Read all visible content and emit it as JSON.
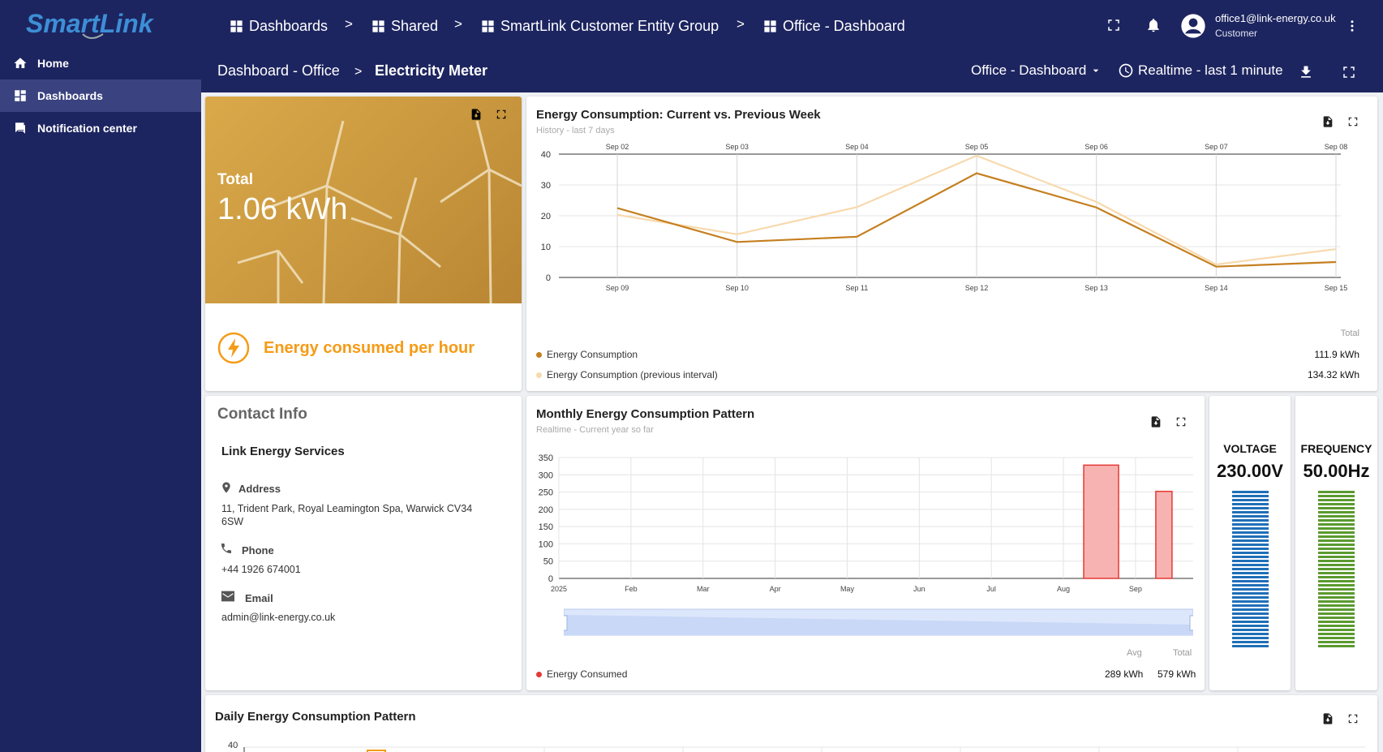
{
  "brand": {
    "logo_text": "SmartLink"
  },
  "sidebar": {
    "items": [
      {
        "label": "Home",
        "icon": "home-icon"
      },
      {
        "label": "Dashboards",
        "icon": "dashboards-icon"
      },
      {
        "label": "Notification center",
        "icon": "notification-icon"
      }
    ]
  },
  "breadcrumb": {
    "items": [
      "Dashboards",
      "Shared",
      "SmartLink Customer Entity Group",
      "Office - Dashboard"
    ],
    "separator": ">"
  },
  "user": {
    "email": "office1@link-energy.co.uk",
    "role": "Customer"
  },
  "subheader": {
    "parent": "Dashboard - Office",
    "current": "Electricity Meter",
    "separator": ">",
    "dashboard_select": "Office - Dashboard",
    "time_window": "Realtime - last 1 minute"
  },
  "total_card": {
    "label": "Total",
    "value": "1.06 kWh",
    "caption": "Energy consumed per hour"
  },
  "contact": {
    "title": "Contact Info",
    "company": "Link Energy Services",
    "address_label": "Address",
    "address": "11, Trident Park, Royal Leamington Spa, Warwick CV34 6SW",
    "phone_label": "Phone",
    "phone": "+44 1926 674001",
    "email_label": "Email",
    "email": "admin@link-energy.co.uk"
  },
  "weekly_chart": {
    "title": "Energy Consumption: Current vs. Previous Week",
    "subtitle": "History - last 7 days",
    "total_header": "Total",
    "legend": [
      {
        "name": "Energy Consumption",
        "total": "111.9 kWh",
        "color": "#c57f1f"
      },
      {
        "name": "Energy Consumption (previous interval)",
        "total": "134.32 kWh",
        "color": "#f7d9ad"
      }
    ]
  },
  "monthly_chart": {
    "title": "Monthly Energy Consumption Pattern",
    "subtitle": "Realtime - Current year so far",
    "avg_header": "Avg",
    "total_header": "Total",
    "legend": {
      "name": "Energy Consumed",
      "avg": "289 kWh",
      "total": "579 kWh",
      "color": "#e53935"
    }
  },
  "voltage": {
    "label": "VOLTAGE",
    "value": "230.00V",
    "color": "#1f6fb8"
  },
  "frequency": {
    "label": "FREQUENCY",
    "value": "50.00Hz",
    "color": "#5a9a2e"
  },
  "daily_chart": {
    "title": "Daily Energy Consumption Pattern",
    "ytick_top": "40"
  },
  "chart_data": [
    {
      "type": "line",
      "title": "Energy Consumption: Current vs. Previous Week",
      "x_top": [
        "Sep 02",
        "Sep 03",
        "Sep 04",
        "Sep 05",
        "Sep 06",
        "Sep 07",
        "Sep 08"
      ],
      "x_bottom": [
        "Sep 09",
        "Sep 10",
        "Sep 11",
        "Sep 12",
        "Sep 13",
        "Sep 14",
        "Sep 15"
      ],
      "ylim": [
        0,
        40
      ],
      "yticks": [
        0,
        10,
        20,
        30,
        40
      ],
      "series": [
        {
          "name": "Energy Consumption",
          "values": [
            22.5,
            11.5,
            13.2,
            33.8,
            22.7,
            3.5,
            5.0
          ],
          "color": "#c57f1f"
        },
        {
          "name": "Energy Consumption (previous interval)",
          "values": [
            20.3,
            14.0,
            22.8,
            39.5,
            24.5,
            4.2,
            9.2
          ],
          "color": "#f7d9ad"
        }
      ],
      "grid": true
    },
    {
      "type": "bar",
      "title": "Monthly Energy Consumption Pattern",
      "xticks": [
        "2025",
        "Feb",
        "Mar",
        "Apr",
        "May",
        "Jun",
        "Jul",
        "Aug",
        "Sep"
      ],
      "ylim": [
        0,
        350
      ],
      "yticks": [
        0,
        50,
        100,
        150,
        200,
        250,
        300,
        350
      ],
      "series": [
        {
          "name": "Energy Consumed",
          "values": [
            {
              "month": "Aug",
              "value": 328
            },
            {
              "month": "Sep",
              "value": 252
            }
          ],
          "color": "#e53935"
        }
      ],
      "grid": true
    }
  ]
}
